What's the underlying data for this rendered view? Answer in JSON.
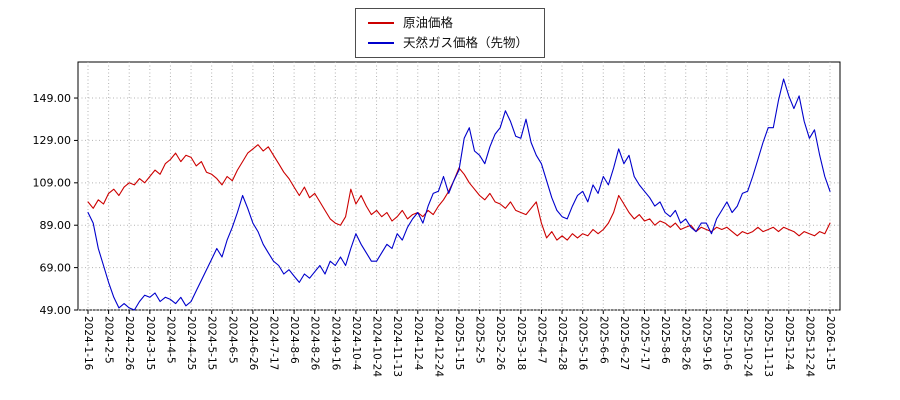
{
  "chart_data": {
    "type": "line",
    "title": "",
    "legend_position": "top-center",
    "grid": true,
    "grid_style": "dotted",
    "background_color": "#ffffff",
    "axis_color": "#000000",
    "grid_color": "#b3b3b3",
    "ylim": [
      49,
      166
    ],
    "y_ticks": [
      49,
      69,
      89,
      109,
      129,
      149
    ],
    "y_tick_labels": [
      "49.00",
      "69.00",
      "89.00",
      "109.00",
      "129.00",
      "149.00"
    ],
    "x_tick_labels": [
      "2024-1-16",
      "2024-2-5",
      "2024-2-26",
      "2024-3-15",
      "2024-4-5",
      "2024-4-25",
      "2024-5-15",
      "2024-6-5",
      "2024-6-26",
      "2024-7-17",
      "2024-8-6",
      "2024-8-26",
      "2024-9-16",
      "2024-10-4",
      "2024-10-24",
      "2024-11-13",
      "2024-12-4",
      "2024-12-24",
      "2025-1-15",
      "2025-2-5",
      "2025-2-26",
      "2025-3-18",
      "2025-4-7",
      "2025-4-28",
      "2025-5-16",
      "2025-6-6",
      "2025-6-27",
      "2025-7-17",
      "2025-8-6",
      "2025-8-26",
      "2025-9-16",
      "2025-10-6",
      "2025-10-24",
      "2025-11-13",
      "2025-12-4",
      "2025-12-24",
      "2026-1-15"
    ],
    "points_per_tick_interval": 4,
    "series": [
      {
        "name": "原油価格",
        "color": "#cc0000",
        "values": [
          100,
          97,
          101,
          99,
          104,
          106,
          103,
          107,
          109,
          108,
          111,
          109,
          112,
          115,
          113,
          118,
          120,
          123,
          119,
          122,
          121,
          117,
          119,
          114,
          113,
          111,
          108,
          112,
          110,
          115,
          119,
          123,
          125,
          127,
          124,
          126,
          122,
          118,
          114,
          111,
          107,
          103,
          107,
          102,
          104,
          100,
          96,
          92,
          90,
          89,
          93,
          106,
          99,
          103,
          98,
          94,
          96,
          93,
          95,
          91,
          93,
          96,
          92,
          94,
          95,
          93,
          96,
          94,
          98,
          101,
          105,
          110,
          116,
          113,
          109,
          106,
          103,
          101,
          104,
          100,
          99,
          97,
          100,
          96,
          95,
          94,
          97,
          100,
          90,
          83,
          86,
          82,
          84,
          82,
          85,
          83,
          85,
          84,
          87,
          85,
          87,
          90,
          95,
          103,
          99,
          95,
          92,
          94,
          91,
          92,
          89,
          91,
          90,
          88,
          90,
          87,
          88,
          89,
          86,
          88,
          87,
          86,
          88,
          87,
          88,
          86,
          84,
          86,
          85,
          86,
          88,
          86,
          87,
          88,
          86,
          88,
          87,
          86,
          84,
          86,
          85,
          84,
          86,
          85,
          90
        ]
      },
      {
        "name": "天然ガス価格（先物）",
        "color": "#0000cc",
        "values": [
          95,
          90,
          78,
          70,
          62,
          55,
          50,
          52,
          50,
          49,
          53,
          56,
          55,
          57,
          53,
          55,
          54,
          52,
          55,
          51,
          53,
          58,
          63,
          68,
          73,
          78,
          74,
          82,
          88,
          95,
          103,
          97,
          90,
          86,
          80,
          76,
          72,
          70,
          66,
          68,
          65,
          62,
          66,
          64,
          67,
          70,
          66,
          72,
          70,
          74,
          70,
          78,
          85,
          80,
          76,
          72,
          72,
          76,
          80,
          78,
          85,
          82,
          88,
          92,
          95,
          90,
          98,
          104,
          105,
          112,
          104,
          110,
          115,
          130,
          135,
          124,
          122,
          118,
          126,
          132,
          135,
          143,
          138,
          131,
          130,
          139,
          128,
          122,
          118,
          110,
          102,
          96,
          93,
          92,
          98,
          103,
          105,
          100,
          108,
          104,
          112,
          108,
          116,
          125,
          118,
          122,
          112,
          108,
          105,
          102,
          98,
          100,
          95,
          93,
          96,
          90,
          92,
          88,
          86,
          90,
          90,
          85,
          92,
          96,
          100,
          95,
          98,
          104,
          105,
          112,
          120,
          128,
          135,
          135,
          148,
          158,
          150,
          144,
          150,
          138,
          130,
          134,
          122,
          112,
          105
        ]
      }
    ]
  }
}
